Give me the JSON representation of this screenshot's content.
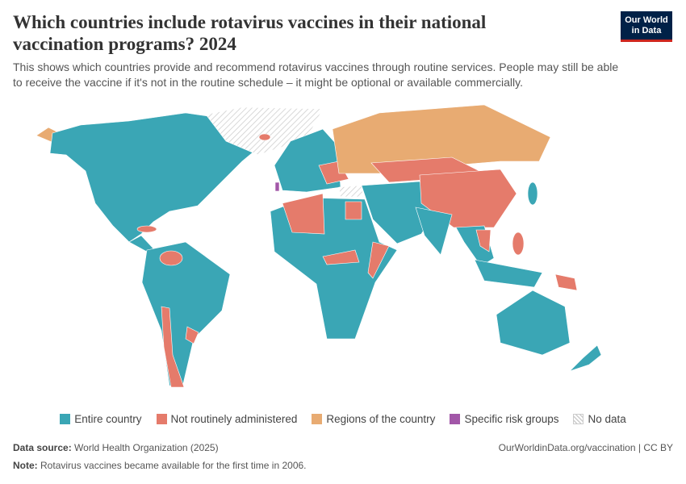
{
  "header": {
    "title_line1": "Which countries include rotavirus vaccines in their national",
    "title_line2": "vaccination programs? 2024",
    "subtitle_line1": "This shows which countries provide and recommend rotavirus vaccines through routine services. People may still be able",
    "subtitle_line2": "to receive the vaccine if it's not in the routine schedule – it might be optional or available commercially.",
    "logo_line1": "Our World",
    "logo_line2": "in Data"
  },
  "legend": {
    "items": [
      {
        "label": "Entire country",
        "color": "#3aa6b5"
      },
      {
        "label": "Not routinely administered",
        "color": "#e57b6b"
      },
      {
        "label": "Regions of the country",
        "color": "#e8ab72"
      },
      {
        "label": "Specific risk groups",
        "color": "#a257a8"
      },
      {
        "label": "No data",
        "color": "hatch"
      }
    ]
  },
  "footer": {
    "source_label": "Data source:",
    "source_text": "World Health Organization (2025)",
    "url": "OurWorldinData.org/vaccination | CC BY",
    "note_label": "Note:",
    "note_text": "Rotavirus vaccines became available for the first time in 2006."
  }
}
